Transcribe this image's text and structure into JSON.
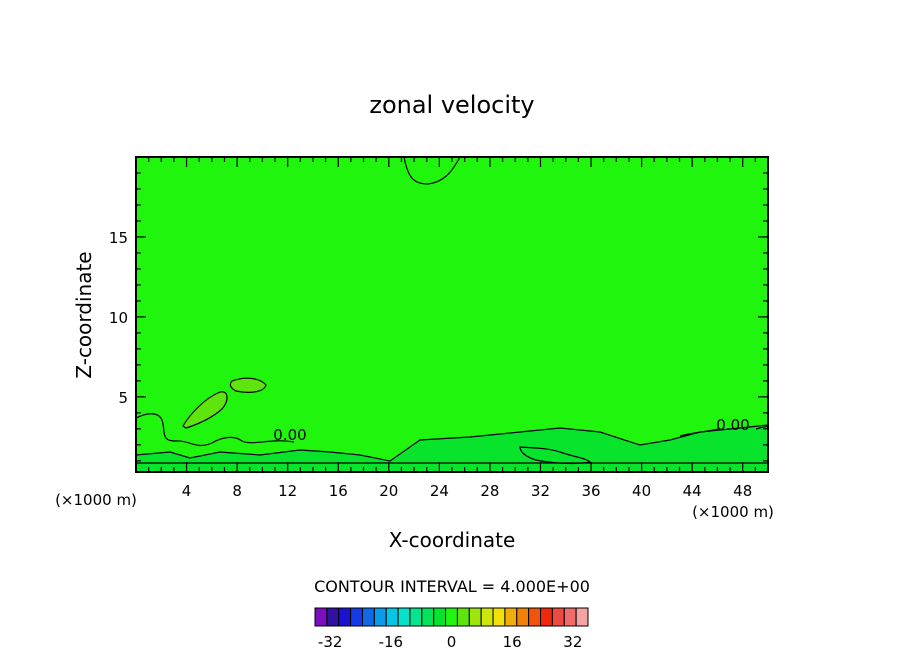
{
  "chart_data": {
    "type": "heatmap",
    "title": "zonal velocity",
    "xlabel": "X-coordinate",
    "ylabel": "Z-coordinate",
    "x_unit_left": "(×1000 m)",
    "x_unit_right": "(×1000 m)",
    "xlim": [
      0,
      50
    ],
    "ylim": [
      0.3,
      20
    ],
    "x_ticks": [
      4,
      8,
      12,
      16,
      20,
      24,
      28,
      32,
      36,
      40,
      44,
      48
    ],
    "y_ticks": [
      5,
      10,
      15
    ],
    "contour_interval_text": "CONTOUR INTERVAL = 4.000E+00",
    "contour_labels": [
      "0.00",
      "0.00"
    ],
    "colorbar": {
      "tick_labels": [
        "-32",
        "-16",
        "0",
        "16",
        "32"
      ],
      "tick_values": [
        -32,
        -16,
        0,
        16,
        32
      ],
      "range": [
        -36,
        36
      ],
      "colors": [
        "#7b0ec1",
        "#3210a2",
        "#1a12d1",
        "#173ae8",
        "#0f6ae9",
        "#0c9be8",
        "#06c6e6",
        "#05e2c9",
        "#06e48f",
        "#06e35a",
        "#08e42b",
        "#20f50e",
        "#5fe50d",
        "#9de50a",
        "#cde60b",
        "#f1e00a",
        "#f3ad0a",
        "#f2810a",
        "#f1540a",
        "#f1260a",
        "#ef4a41",
        "#f06c6c",
        "#f4a3a3"
      ]
    },
    "background_value_color": "#20f50e",
    "regions": [
      {
        "name": "positive-lobe-lower-left",
        "color": "#5fe50d"
      },
      {
        "name": "positive-lobe-small",
        "color": "#5fe50d"
      },
      {
        "name": "near-surface-band",
        "color": "#08e42b"
      }
    ]
  }
}
